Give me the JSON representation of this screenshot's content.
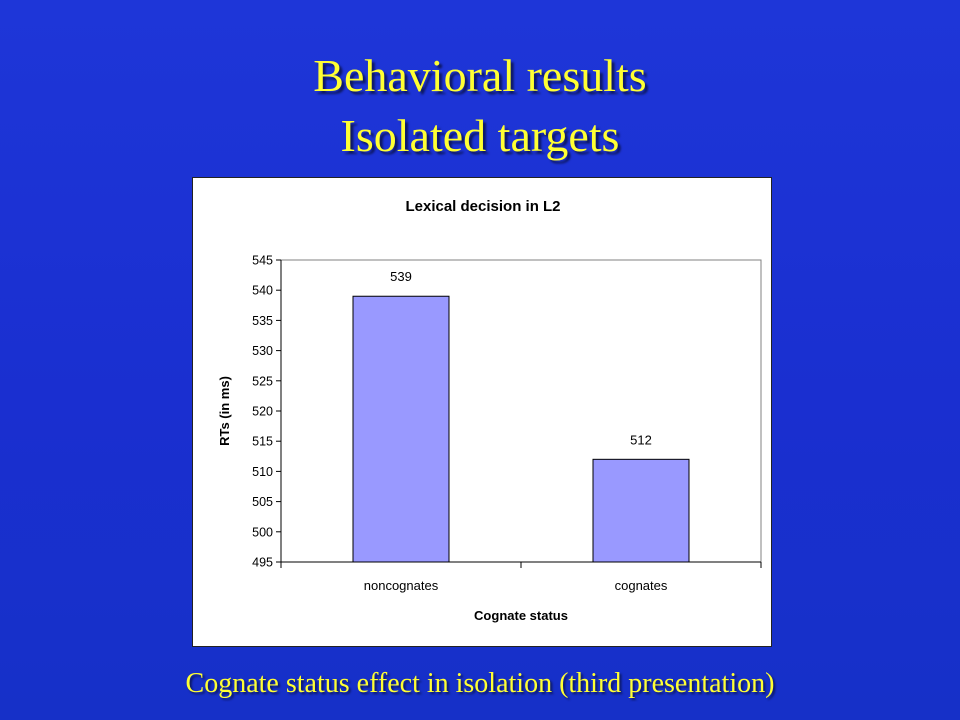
{
  "slide": {
    "title_line1": "Behavioral results",
    "title_line2": "Isolated targets",
    "caption": "Cognate status effect in isolation (third presentation)"
  },
  "colors": {
    "background": "#1e36d8",
    "title_text": "#ffff33",
    "bar_fill": "#9999ff",
    "plot_background": "#ffffff"
  },
  "chart_data": {
    "type": "bar",
    "title": "Lexical decision in L2",
    "xlabel": "Cognate status",
    "ylabel": "RTs (in ms)",
    "categories": [
      "noncognates",
      "cognates"
    ],
    "values": [
      539,
      512
    ],
    "data_labels": [
      "539",
      "512"
    ],
    "ylim": [
      495,
      545
    ],
    "yticks": [
      "495",
      "500",
      "505",
      "510",
      "515",
      "520",
      "525",
      "530",
      "535",
      "540",
      "545"
    ],
    "grid": false,
    "legend": "none"
  }
}
